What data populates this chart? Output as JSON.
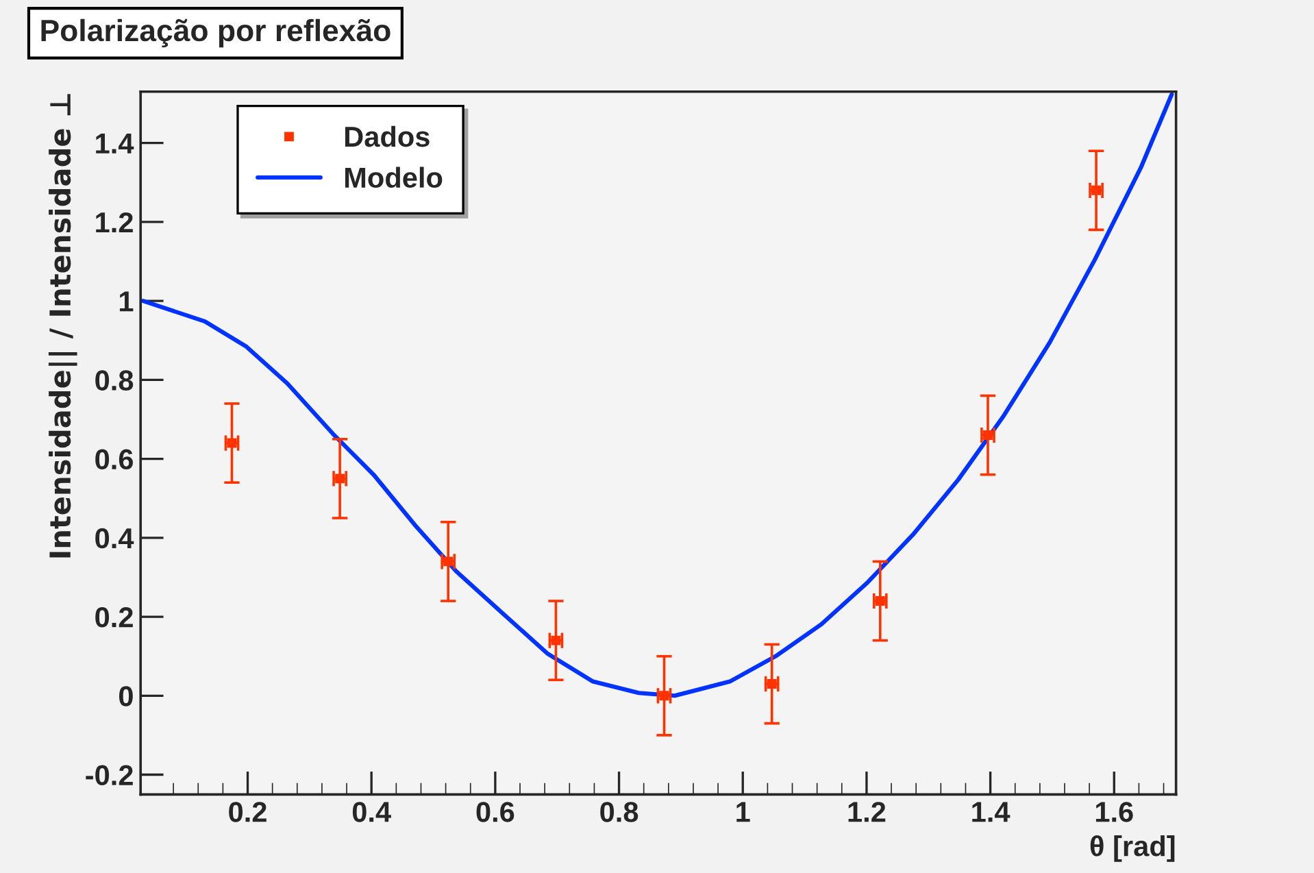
{
  "chart_data": {
    "type": "scatter",
    "title": "Polarização por reflexão",
    "xlabel": "θ [rad]",
    "ylabel": "Intensidade|| / Intensidade ⊥",
    "xlim": [
      0.027,
      1.7
    ],
    "ylim": [
      -0.25,
      1.53
    ],
    "xticks": [
      0.2,
      0.4,
      0.6,
      0.8,
      1,
      1.2,
      1.4,
      1.6
    ],
    "yticks": [
      -0.2,
      0,
      0.2,
      0.4,
      0.6,
      0.8,
      1,
      1.2,
      1.4
    ],
    "legend": "top left",
    "grid": false,
    "series": [
      {
        "name": "Dados",
        "color": "#ff3300",
        "marker": "square",
        "x": [
          0.1745,
          0.349,
          0.524,
          0.698,
          0.873,
          1.047,
          1.222,
          1.396,
          1.571
        ],
        "values": [
          0.64,
          0.55,
          0.34,
          0.14,
          0.0,
          0.03,
          0.24,
          0.66,
          1.28
        ],
        "errors": [
          0.1,
          0.1,
          0.1,
          0.1,
          0.1,
          0.1,
          0.1,
          0.1,
          0.1
        ],
        "xerrors": [
          0.01,
          0.01,
          0.01,
          0.01,
          0.01,
          0.01,
          0.01,
          0.01,
          0.01
        ]
      },
      {
        "name": "Modelo",
        "type": "line",
        "color": "#0033ff",
        "line_style": "solid",
        "x": [
          0.031,
          0.131,
          0.198,
          0.264,
          0.338,
          0.404,
          0.471,
          0.537,
          0.611,
          0.685,
          0.758,
          0.832,
          0.89,
          0.979,
          1.053,
          1.127,
          1.201,
          1.275,
          1.348,
          1.422,
          1.496,
          1.569,
          1.643,
          1.693
        ],
        "values": [
          1.0,
          0.948,
          0.884,
          0.791,
          0.663,
          0.559,
          0.431,
          0.315,
          0.21,
          0.106,
          0.036,
          0.007,
          0.0,
          0.036,
          0.1,
          0.181,
          0.286,
          0.408,
          0.547,
          0.71,
          0.895,
          1.105,
          1.337,
          1.523
        ]
      }
    ]
  }
}
